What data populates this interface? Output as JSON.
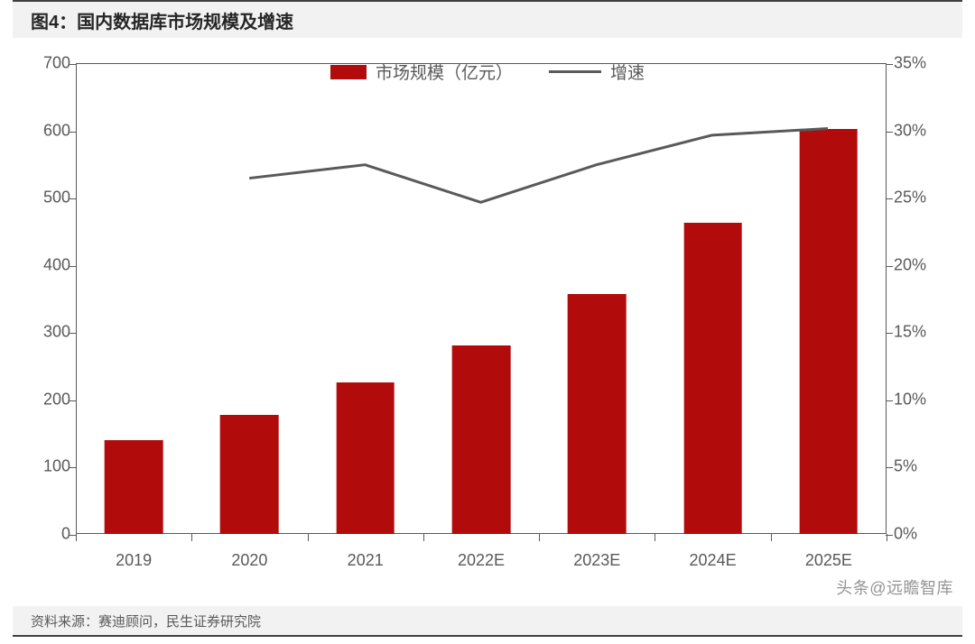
{
  "title": "图4：国内数据库市场规模及增速",
  "source_label": "资料来源：赛迪顾问，民生证券研究院",
  "watermark": "头条@远瞻智库",
  "legend": {
    "bar_label": "市场规模（亿元）",
    "line_label": "增速"
  },
  "chart": {
    "type": "bar+line",
    "categories": [
      "2019",
      "2020",
      "2021",
      "2022E",
      "2023E",
      "2024E",
      "2025E"
    ],
    "bar_values": [
      140,
      177,
      225,
      280,
      357,
      463,
      602
    ],
    "bar_color": "#b20b0b",
    "line_values_pct": [
      null,
      26.5,
      27.5,
      24.7,
      27.5,
      29.7,
      30.2
    ],
    "line_color": "#595959",
    "line_width": 3,
    "left_axis": {
      "min": 0,
      "max": 700,
      "step": 100,
      "labels": [
        "0",
        "100",
        "200",
        "300",
        "400",
        "500",
        "600",
        "700"
      ]
    },
    "right_axis": {
      "min": 0,
      "max": 35,
      "step": 5,
      "labels": [
        "0%",
        "5%",
        "10%",
        "15%",
        "20%",
        "25%",
        "30%",
        "35%"
      ]
    },
    "bar_width_pct": 7.2,
    "axis_color": "#595959",
    "text_color": "#595959",
    "title_fontsize": 20,
    "label_fontsize": 18,
    "background_color": "#ffffff",
    "header_bg": "#f2f2f2",
    "footer_bg": "#f2f2f2",
    "border_color": "#404040"
  }
}
